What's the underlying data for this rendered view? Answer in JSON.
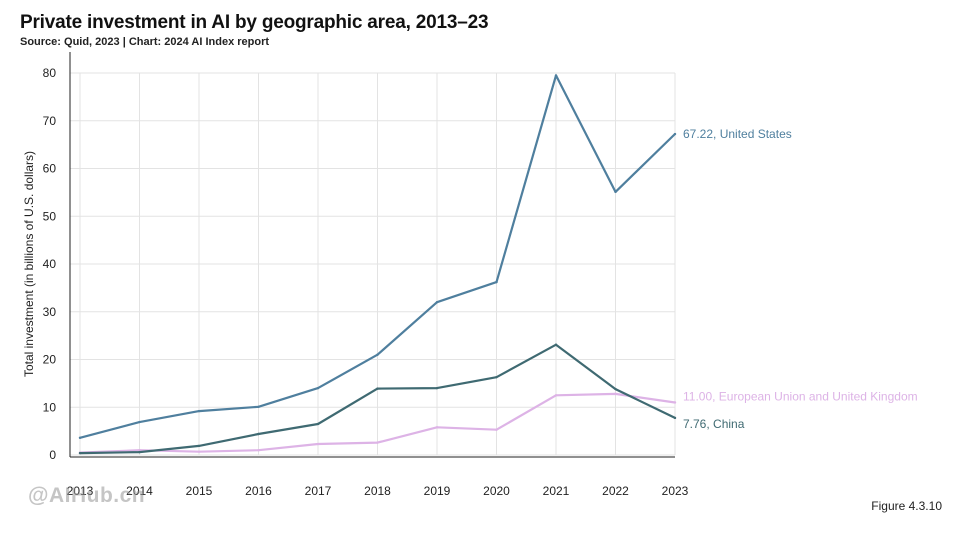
{
  "header": {
    "title": "Private investment in AI by geographic area, 2013–23",
    "subtitle": "Source: Quid, 2023 | Chart: 2024 AI Index report"
  },
  "figure_label": "Figure 4.3.10",
  "watermark": "@AIHub.cn",
  "colors": {
    "united_states": "#4f7f9e",
    "china": "#3f6a72",
    "eu_uk": "#ddb3e6",
    "grid": "#e3e3e3",
    "axis": "#222222"
  },
  "chart_data": {
    "type": "line",
    "title": "Private investment in AI by geographic area, 2013–23",
    "xlabel": "",
    "ylabel": "Total investment (in billions of U.S. dollars)",
    "x": [
      2013,
      2014,
      2015,
      2016,
      2017,
      2018,
      2019,
      2020,
      2021,
      2022,
      2023
    ],
    "ylim": [
      0,
      80
    ],
    "yticks": [
      0,
      10,
      20,
      30,
      40,
      50,
      60,
      70,
      80
    ],
    "grid": true,
    "series": [
      {
        "key": "united_states",
        "name": "United States",
        "end_label": "67.22, United States",
        "values": [
          3.6,
          6.9,
          9.2,
          10.1,
          14.0,
          21.0,
          32.0,
          36.2,
          79.5,
          55.1,
          67.22
        ]
      },
      {
        "key": "eu_uk",
        "name": "European Union and United Kingdom",
        "end_label": "11.00, European Union and United Kingdom",
        "values": [
          0.5,
          1.0,
          0.7,
          1.0,
          2.3,
          2.6,
          5.8,
          5.3,
          12.5,
          12.8,
          11.0
        ]
      },
      {
        "key": "china",
        "name": "China",
        "end_label": "7.76, China",
        "values": [
          0.4,
          0.6,
          1.9,
          4.4,
          6.5,
          13.9,
          14.0,
          16.3,
          23.1,
          13.8,
          7.76
        ]
      }
    ]
  }
}
